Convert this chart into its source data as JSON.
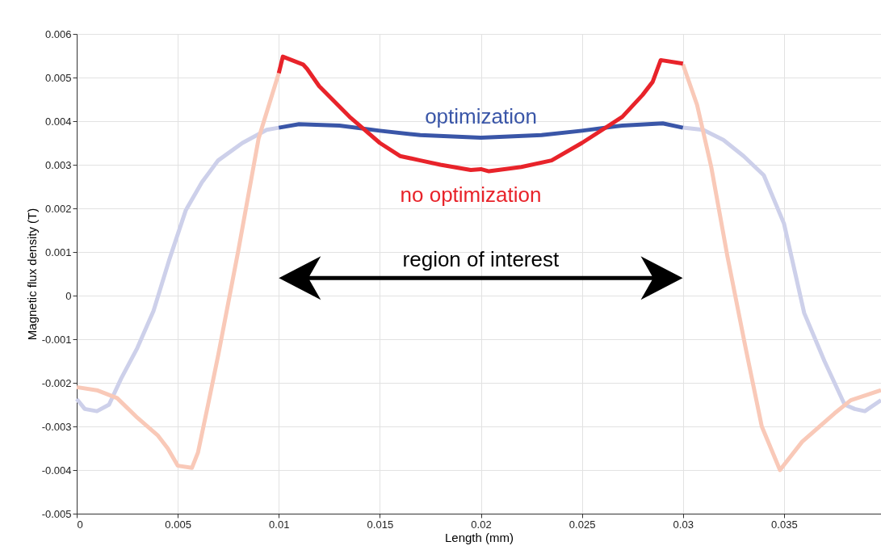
{
  "chart_data": {
    "type": "line",
    "xlabel": "Length (mm)",
    "ylabel": "Magnetic flux density (T)",
    "xlim": [
      0,
      0.0398
    ],
    "ylim": [
      -0.005,
      0.006
    ],
    "xticks": [
      0,
      0.005,
      0.01,
      0.015,
      0.02,
      0.025,
      0.03,
      0.035
    ],
    "yticks": [
      -0.005,
      -0.004,
      -0.003,
      -0.002,
      -0.001,
      0,
      0.001,
      0.002,
      0.003,
      0.004,
      0.005,
      0.006
    ],
    "grid": true,
    "line_style": "solid",
    "marker": "none",
    "series": [
      {
        "color": "#cdd0ea",
        "x": [
          0,
          0.0004,
          0.001,
          0.0016,
          0.0022,
          0.003,
          0.0038,
          0.0046,
          0.0054,
          0.0062,
          0.007,
          0.0082,
          0.0094,
          0.01
        ],
        "values": [
          -0.00237,
          -0.0026,
          -0.00265,
          -0.0025,
          -0.0019,
          -0.0012,
          -0.00035,
          0.00085,
          0.00196,
          0.0026,
          0.0031,
          0.0035,
          0.0038,
          0.00385
        ]
      },
      {
        "color": "#cdd0ea",
        "x": [
          0.03,
          0.031,
          0.032,
          0.033,
          0.034,
          0.035,
          0.036,
          0.037,
          0.038,
          0.0385,
          0.039,
          0.0398
        ],
        "values": [
          0.00385,
          0.0038,
          0.00357,
          0.0032,
          0.00276,
          0.00165,
          -0.0004,
          -0.0015,
          -0.0025,
          -0.0026,
          -0.00265,
          -0.0024
        ]
      },
      {
        "color": "#f9c9b8",
        "x": [
          0,
          0.001,
          0.002,
          0.003,
          0.004,
          0.0045,
          0.005,
          0.0057,
          0.006,
          0.0065,
          0.007,
          0.008,
          0.009,
          0.01
        ],
        "values": [
          -0.0021,
          -0.00217,
          -0.00235,
          -0.0028,
          -0.0032,
          -0.0035,
          -0.0039,
          -0.00395,
          -0.0036,
          -0.0025,
          -0.00137,
          0.00104,
          0.0036,
          0.0051
        ]
      },
      {
        "color": "#f9c9b8",
        "x": [
          0.03,
          0.0307,
          0.0314,
          0.0322,
          0.0331,
          0.0339,
          0.0348,
          0.0359,
          0.0375,
          0.0383,
          0.0398
        ],
        "values": [
          0.0053,
          0.00437,
          0.00295,
          0.0009,
          -0.0012,
          -0.003,
          -0.004,
          -0.00335,
          -0.0027,
          -0.0024,
          -0.00217
        ]
      },
      {
        "name": "optimization",
        "color": "#3a56a8",
        "x": [
          0.01,
          0.011,
          0.013,
          0.015,
          0.017,
          0.02,
          0.023,
          0.025,
          0.027,
          0.029,
          0.03
        ],
        "values": [
          0.00385,
          0.00393,
          0.0039,
          0.00378,
          0.00368,
          0.00362,
          0.00368,
          0.00378,
          0.0039,
          0.00395,
          0.00385
        ]
      },
      {
        "name": "no optimization",
        "color": "#e8232a",
        "x": [
          0.01,
          0.0102,
          0.0112,
          0.0114,
          0.012,
          0.0135,
          0.014,
          0.015,
          0.016,
          0.017,
          0.018,
          0.0195,
          0.02,
          0.0204,
          0.022,
          0.0235,
          0.025,
          0.027,
          0.028,
          0.0285,
          0.0289,
          0.03
        ],
        "values": [
          0.0051,
          0.00548,
          0.0053,
          0.0052,
          0.0048,
          0.0041,
          0.0039,
          0.0035,
          0.0032,
          0.0031,
          0.003,
          0.00288,
          0.0029,
          0.00285,
          0.00295,
          0.0031,
          0.0035,
          0.0041,
          0.0046,
          0.0049,
          0.0054,
          0.00532
        ]
      }
    ],
    "annotations": [
      "region of interest"
    ]
  }
}
